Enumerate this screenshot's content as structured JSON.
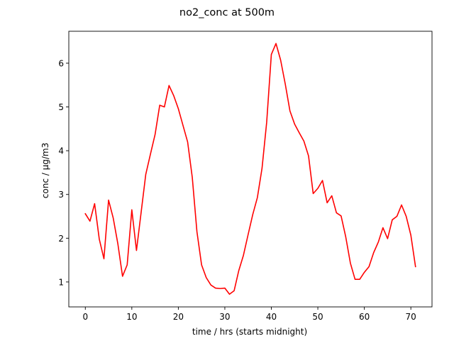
{
  "chart_data": {
    "type": "line",
    "title": "no2_conc at 500m",
    "xlabel": "time / hrs (starts midnight)",
    "ylabel": "conc / µg/m3",
    "xlim": [
      -3.55,
      74.55
    ],
    "ylim": [
      0.43,
      6.73
    ],
    "xticks": [
      0,
      10,
      20,
      30,
      40,
      50,
      60,
      70
    ],
    "yticks": [
      1,
      2,
      3,
      4,
      5,
      6
    ],
    "grid": false,
    "series": [
      {
        "color": "#ff0000",
        "x": [
          0,
          1,
          2,
          3,
          4,
          5,
          6,
          7,
          8,
          9,
          10,
          11,
          12,
          13,
          14,
          15,
          16,
          17,
          18,
          19,
          20,
          21,
          22,
          23,
          24,
          25,
          26,
          27,
          28,
          29,
          30,
          31,
          32,
          33,
          34,
          35,
          36,
          37,
          38,
          39,
          40,
          41,
          42,
          43,
          44,
          45,
          46,
          47,
          48,
          49,
          50,
          51,
          52,
          53,
          54,
          55,
          56,
          57,
          58,
          59,
          60,
          61,
          62,
          63,
          64,
          65,
          66,
          67,
          68,
          69,
          70,
          71
        ],
        "y": [
          2.56,
          2.39,
          2.79,
          1.98,
          1.53,
          2.87,
          2.46,
          1.87,
          1.13,
          1.39,
          2.65,
          1.72,
          2.59,
          3.46,
          3.92,
          4.37,
          5.04,
          5.0,
          5.49,
          5.26,
          4.96,
          4.58,
          4.2,
          3.39,
          2.15,
          1.39,
          1.1,
          0.93,
          0.86,
          0.85,
          0.86,
          0.72,
          0.8,
          1.26,
          1.61,
          2.08,
          2.54,
          2.93,
          3.6,
          4.65,
          6.2,
          6.45,
          6.07,
          5.52,
          4.91,
          4.61,
          4.41,
          4.22,
          3.88,
          3.02,
          3.14,
          3.32,
          2.81,
          2.97,
          2.58,
          2.51,
          2.03,
          1.43,
          1.06,
          1.06,
          1.22,
          1.35,
          1.67,
          1.91,
          2.24,
          1.99,
          2.42,
          2.5,
          2.76,
          2.5,
          2.07,
          1.35
        ]
      }
    ]
  }
}
